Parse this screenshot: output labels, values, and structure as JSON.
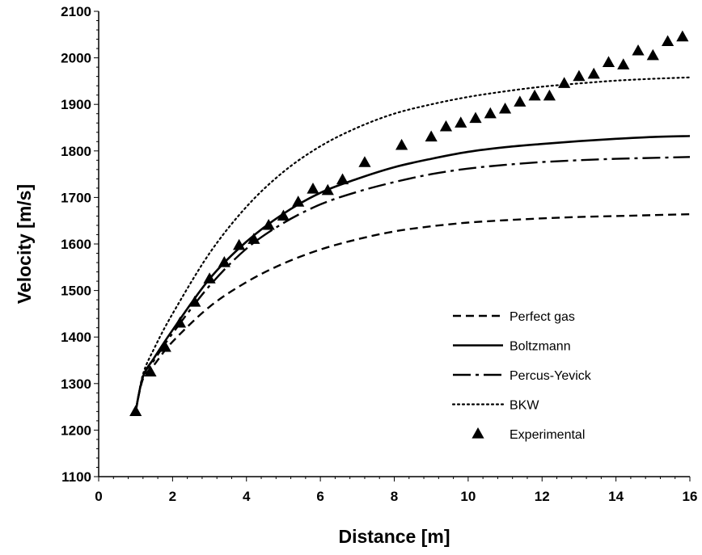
{
  "chart_data": {
    "type": "line",
    "title": "",
    "xlabel": "Distance [m]",
    "ylabel": "Velocity [m/s]",
    "xlim": [
      0,
      16
    ],
    "ylim": [
      1100,
      2100
    ],
    "xticks": [
      0,
      2,
      4,
      6,
      8,
      10,
      12,
      14,
      16
    ],
    "yticks": [
      1100,
      1200,
      1300,
      1400,
      1500,
      1600,
      1700,
      1800,
      1900,
      2000,
      2100
    ],
    "grid": false,
    "legend_position": "bottom-right",
    "series": [
      {
        "name": "Perfect gas",
        "style": "dashed",
        "x": [
          1.0,
          1.2,
          1.5,
          2.0,
          3.0,
          4.0,
          5.0,
          6.0,
          7.0,
          8.0,
          9.0,
          10.0,
          11.0,
          12.0,
          13.0,
          14.0,
          15.0,
          16.0
        ],
        "y": [
          1240,
          1310,
          1340,
          1390,
          1465,
          1518,
          1558,
          1588,
          1610,
          1627,
          1638,
          1646,
          1651,
          1655,
          1658,
          1660,
          1662,
          1664
        ]
      },
      {
        "name": "Boltzmann",
        "style": "solid",
        "x": [
          1.0,
          1.2,
          1.5,
          2.0,
          3.0,
          4.0,
          5.0,
          6.0,
          7.0,
          8.0,
          9.0,
          10.0,
          11.0,
          12.0,
          13.0,
          14.0,
          15.0,
          16.0
        ],
        "y": [
          1240,
          1315,
          1355,
          1415,
          1525,
          1605,
          1665,
          1710,
          1740,
          1765,
          1783,
          1798,
          1808,
          1815,
          1821,
          1826,
          1830,
          1832
        ]
      },
      {
        "name": "Percus-Yevick",
        "style": "dashdot",
        "x": [
          1.0,
          1.2,
          1.5,
          2.0,
          3.0,
          4.0,
          5.0,
          6.0,
          7.0,
          8.0,
          9.0,
          10.0,
          11.0,
          12.0,
          13.0,
          14.0,
          15.0,
          16.0
        ],
        "y": [
          1240,
          1315,
          1350,
          1408,
          1510,
          1590,
          1645,
          1685,
          1712,
          1733,
          1750,
          1762,
          1770,
          1776,
          1780,
          1783,
          1785,
          1787
        ]
      },
      {
        "name": "BKW",
        "style": "dotted",
        "x": [
          1.0,
          1.2,
          1.5,
          2.0,
          3.0,
          4.0,
          5.0,
          6.0,
          7.0,
          8.0,
          9.0,
          10.0,
          11.0,
          12.0,
          13.0,
          14.0,
          15.0,
          16.0
        ],
        "y": [
          1240,
          1320,
          1375,
          1450,
          1580,
          1680,
          1755,
          1810,
          1850,
          1880,
          1900,
          1916,
          1928,
          1938,
          1945,
          1951,
          1955,
          1958
        ]
      },
      {
        "name": "Experimental",
        "style": "markers",
        "marker": "triangle",
        "x": [
          1.0,
          1.4,
          1.8,
          2.2,
          2.6,
          3.0,
          3.4,
          3.8,
          4.2,
          4.6,
          5.0,
          5.4,
          5.8,
          6.2,
          6.6,
          7.2,
          8.2,
          9.0,
          9.4,
          9.8,
          10.2,
          10.6,
          11.0,
          11.4,
          11.8,
          12.2,
          12.6,
          13.0,
          13.4,
          13.8,
          14.2,
          14.6,
          15.0,
          15.4,
          15.8
        ],
        "y": [
          1240,
          1325,
          1378,
          1430,
          1475,
          1525,
          1560,
          1597,
          1610,
          1640,
          1660,
          1690,
          1718,
          1715,
          1738,
          1775,
          1812,
          1830,
          1852,
          1860,
          1870,
          1880,
          1890,
          1905,
          1918,
          1918,
          1945,
          1960,
          1965,
          1990,
          1985,
          2015,
          2005,
          2035,
          2045
        ]
      }
    ]
  }
}
